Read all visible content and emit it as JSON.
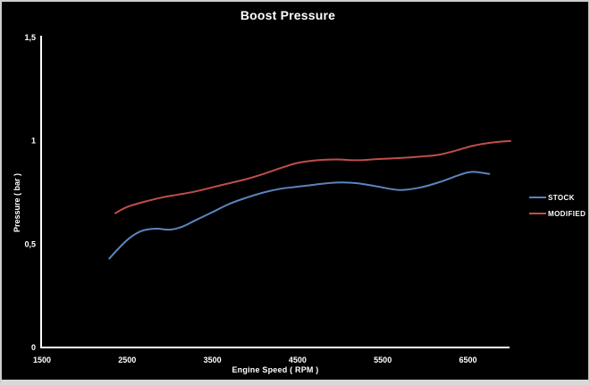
{
  "chart_data": {
    "type": "line",
    "title": "Boost Pressure",
    "xlabel": "Engine Speed ( RPM )",
    "ylabel": "Pressure ( bar )",
    "xlim": [
      1500,
      7000
    ],
    "ylim": [
      0,
      1.5
    ],
    "x_ticks": [
      1500,
      2500,
      3500,
      4500,
      5500,
      6500
    ],
    "x_tick_labels": [
      "1500",
      "2500",
      "3500",
      "4500",
      "5500",
      "6500"
    ],
    "y_ticks": [
      0,
      0.5,
      1,
      1.5
    ],
    "y_tick_labels": [
      "0",
      "0,5",
      "1",
      "1,5"
    ],
    "grid": false,
    "background_color": "#000000",
    "axis_color": "#ffffff",
    "text_color": "#ffffff",
    "legend_position": "right",
    "series": [
      {
        "name": "STOCK",
        "color": "#5b84bd",
        "x": [
          2290,
          2400,
          2500,
          2600,
          2700,
          2850,
          3000,
          3150,
          3300,
          3500,
          3700,
          3900,
          4100,
          4300,
          4500,
          4700,
          4950,
          5200,
          5450,
          5700,
          5950,
          6200,
          6400,
          6550,
          6750
        ],
        "y": [
          0.43,
          0.48,
          0.52,
          0.55,
          0.568,
          0.575,
          0.57,
          0.585,
          0.615,
          0.655,
          0.695,
          0.725,
          0.75,
          0.768,
          0.778,
          0.788,
          0.798,
          0.795,
          0.778,
          0.762,
          0.775,
          0.805,
          0.835,
          0.85,
          0.84
        ]
      },
      {
        "name": "MODIFIED",
        "color": "#bf4e4b",
        "x": [
          2360,
          2500,
          2700,
          2900,
          3100,
          3300,
          3500,
          3700,
          3900,
          4100,
          4300,
          4500,
          4700,
          4950,
          5200,
          5450,
          5700,
          5950,
          6150,
          6350,
          6550,
          6750,
          7000
        ],
        "y": [
          0.65,
          0.68,
          0.705,
          0.725,
          0.74,
          0.755,
          0.775,
          0.795,
          0.815,
          0.84,
          0.868,
          0.893,
          0.905,
          0.91,
          0.906,
          0.912,
          0.917,
          0.924,
          0.932,
          0.952,
          0.975,
          0.99,
          1.0
        ]
      }
    ]
  }
}
